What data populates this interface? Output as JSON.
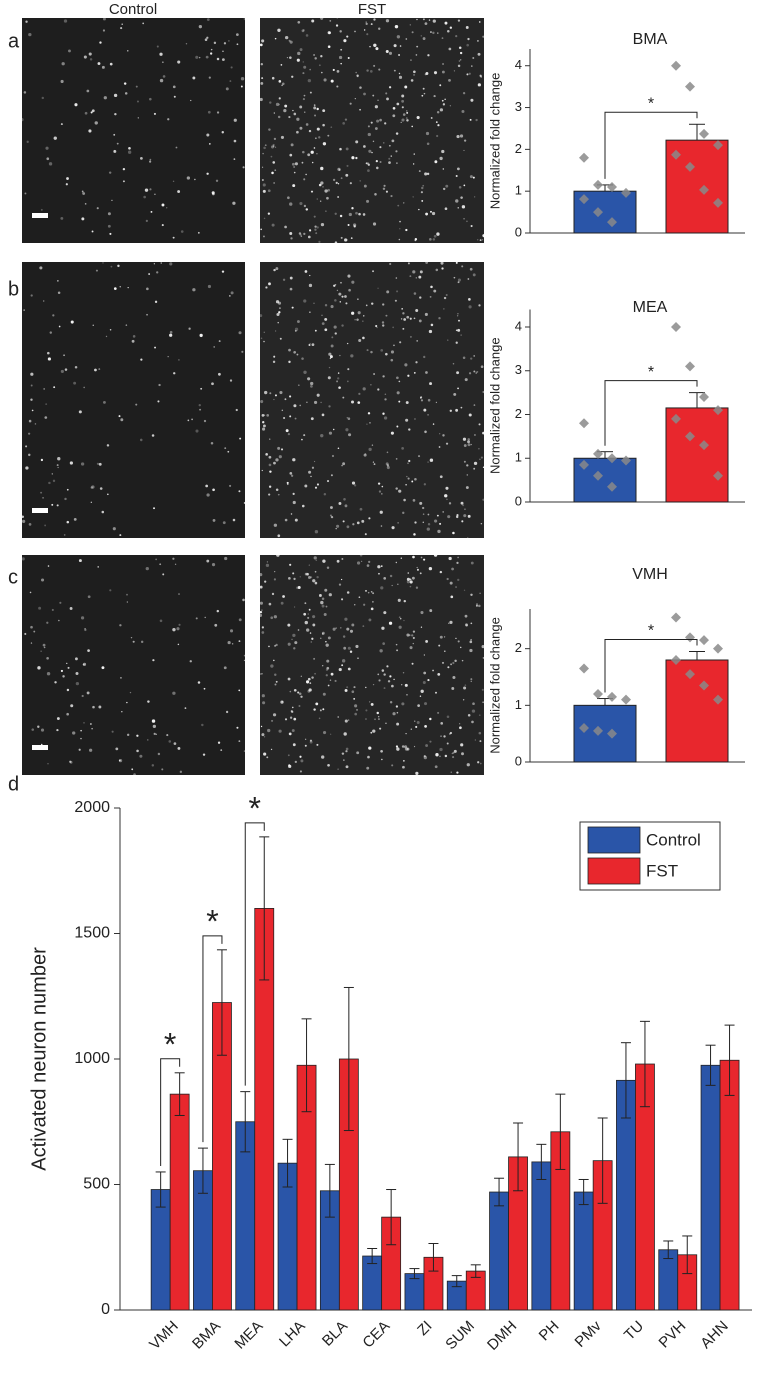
{
  "panel_labels": [
    "a",
    "b",
    "c",
    "d"
  ],
  "image_labels": [
    "Control",
    "FST"
  ],
  "chart_data": [
    {
      "type": "bar",
      "title": "BMA",
      "ylabel": "Normalized fold change",
      "values": [
        1.0,
        2.22
      ],
      "errors": [
        0.15,
        0.38
      ],
      "colors": [
        "#2a55a8",
        "#e8272d"
      ],
      "points": [
        [
          1.8,
          1.15,
          1.1,
          0.96,
          0.81,
          0.5,
          0.26
        ],
        [
          4.0,
          3.5,
          2.37,
          2.1,
          1.87,
          1.58,
          1.03,
          0.72
        ]
      ],
      "point_color": "#8a8a8a",
      "significance": "*",
      "ylim": [
        0,
        4.4
      ],
      "yticks": [
        0,
        1,
        2,
        3,
        4
      ]
    },
    {
      "type": "bar",
      "title": "MEA",
      "ylabel": "Normalized fold change",
      "values": [
        1.0,
        2.15
      ],
      "errors": [
        0.15,
        0.35
      ],
      "colors": [
        "#2a55a8",
        "#e8272d"
      ],
      "points": [
        [
          1.8,
          1.1,
          1.0,
          0.95,
          0.85,
          0.6,
          0.35
        ],
        [
          4.0,
          3.1,
          2.4,
          2.1,
          1.9,
          1.5,
          1.3,
          0.6
        ]
      ],
      "point_color": "#8a8a8a",
      "significance": "*",
      "ylim": [
        0,
        4.4
      ],
      "yticks": [
        0,
        1,
        2,
        3,
        4
      ]
    },
    {
      "type": "bar",
      "title": "VMH",
      "ylabel": "Normalized fold change",
      "values": [
        1.0,
        1.8
      ],
      "errors": [
        0.12,
        0.15
      ],
      "colors": [
        "#2a55a8",
        "#e8272d"
      ],
      "points": [
        [
          1.65,
          1.2,
          1.15,
          1.1,
          0.6,
          0.55,
          0.5
        ],
        [
          2.55,
          2.2,
          2.15,
          2.0,
          1.8,
          1.55,
          1.35,
          1.1
        ]
      ],
      "point_color": "#8a8a8a",
      "significance": "*",
      "ylim": [
        0,
        2.7
      ],
      "yticks": [
        0,
        1,
        2
      ]
    },
    {
      "type": "bar",
      "ylabel": "Activated neuron number",
      "categories": [
        "VMH",
        "BMA",
        "MEA",
        "LHA",
        "BLA",
        "CEA",
        "ZI",
        "SUM",
        "DMH",
        "PH",
        "PMv",
        "TU",
        "PVH",
        "AHN"
      ],
      "series": [
        {
          "name": "Control",
          "color": "#2a55a8",
          "values": [
            480,
            555,
            750,
            585,
            475,
            215,
            145,
            115,
            470,
            590,
            470,
            915,
            240,
            975
          ],
          "errors": [
            70,
            90,
            120,
            95,
            105,
            30,
            20,
            22,
            55,
            70,
            50,
            150,
            35,
            80
          ]
        },
        {
          "name": "FST",
          "color": "#e8272d",
          "values": [
            860,
            1225,
            1600,
            975,
            1000,
            370,
            210,
            155,
            610,
            710,
            595,
            980,
            220,
            995
          ],
          "errors": [
            85,
            210,
            285,
            185,
            285,
            110,
            55,
            25,
            135,
            150,
            170,
            170,
            75,
            140
          ]
        }
      ],
      "significance": [
        "*",
        "*",
        "*",
        null,
        null,
        null,
        null,
        null,
        null,
        null,
        null,
        null,
        null,
        null
      ],
      "ylim": [
        0,
        2000
      ],
      "yticks": [
        0,
        500,
        1000,
        1500,
        2000
      ],
      "legend": "upper right"
    }
  ]
}
